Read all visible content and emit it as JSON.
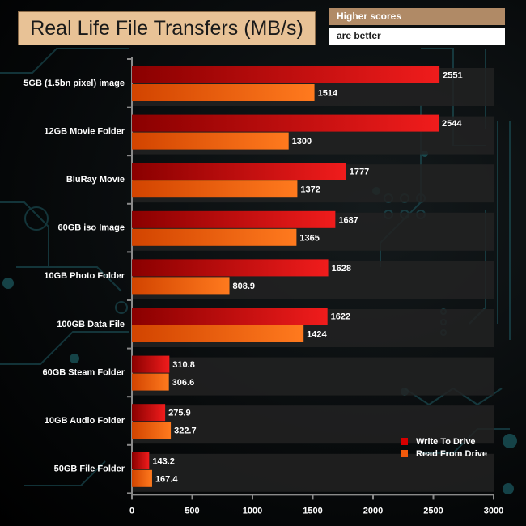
{
  "header": {
    "title": "Real Life File Transfers (MB/s)",
    "note_line1": "Higher scores",
    "note_line2": "are better"
  },
  "colors": {
    "write_bar_dark": "#8a0000",
    "write_bar_light": "#f01c1c",
    "read_bar_dark": "#d24400",
    "read_bar_light": "#ff7a1e",
    "title_bg": "#e8c296",
    "note_bg": "#b08a66",
    "band": "#222222",
    "axis": "#8a8a8a",
    "circuit": "#1f5a62"
  },
  "chart_data": {
    "type": "bar",
    "orientation": "horizontal",
    "title": "Real Life File Transfers (MB/s)",
    "xlabel": "",
    "ylabel": "",
    "xlim": [
      0,
      3000
    ],
    "xticks": [
      0,
      500,
      1000,
      1500,
      2000,
      2500,
      3000
    ],
    "legend_position": "bottom-right",
    "categories": [
      "5GB (1.5bn pixel) image",
      "12GB Movie Folder",
      "BluRay Movie",
      "60GB iso Image",
      "10GB Photo Folder",
      "100GB Data File",
      "60GB Steam Folder",
      "10GB Audio Folder",
      "50GB File Folder"
    ],
    "series": [
      {
        "name": "Write To  Drive",
        "values": [
          2551,
          2544,
          1777,
          1687,
          1628,
          1622,
          310.8,
          275.9,
          143.2
        ],
        "labels": [
          "2551",
          "2544",
          "1777",
          "1687",
          "1628",
          "1622",
          "310.8",
          "275.9",
          "143.2"
        ]
      },
      {
        "name": "Read From  Drive",
        "values": [
          1514,
          1300,
          1372,
          1365,
          808.9,
          1424,
          306.6,
          322.7,
          167.4
        ],
        "labels": [
          "1514",
          "1300",
          "1372",
          "1365",
          "808.9",
          "1424",
          "306.6",
          "322.7",
          "167.4"
        ]
      }
    ]
  }
}
